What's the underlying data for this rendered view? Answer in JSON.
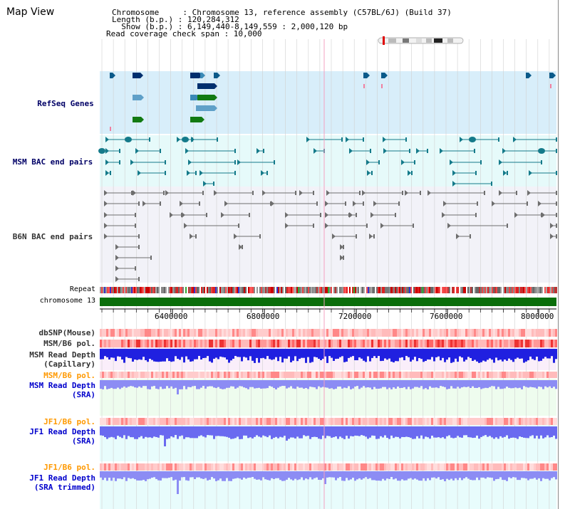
{
  "header": {
    "title": "Map View",
    "chromosome_line": "Chromosome     : Chromosome 13, reference assembly (C57BL/6J) (Build 37)",
    "length_line": "Length (b.p.) : 120,284,312",
    "show_line": "  Show (b.p.) : 6,149,440-8,149,559 : 2,000,120 bp",
    "coverage_line": "Read coverage check span : 10,000"
  },
  "tracks": {
    "refseq": "RefSeq Genes",
    "msm_bac": "MSM BAC end pairs",
    "b6n_bac": "B6N BAC end pairs",
    "repeat": "Repeat",
    "chromosome": "chromosome 13",
    "dbsnp": "dbSNP(Mouse)",
    "msm_b6_pol_1": "MSM/B6 pol.",
    "msm_depth_cap_1": "MSM Read Depth",
    "msm_depth_cap_2": "(Capillary)",
    "msm_b6_pol_2": "MSM/B6 pol.",
    "msm_depth_sra_1": "MSM Read Depth",
    "msm_depth_sra_2": "(SRA)",
    "jf1_b6_pol_1": "JF1/B6 pol.",
    "jf1_depth_sra_1": "JF1 Read Depth",
    "jf1_depth_sra_2": "(SRA)",
    "jf1_b6_pol_2": "JF1/B6 pol.",
    "jf1_depth_trim_1": "JF1 Read Depth",
    "jf1_depth_trim_2": "(SRA trimmed)"
  },
  "axis": {
    "ticks": [
      "6400000",
      "6800000",
      "7200000",
      "7600000",
      "8000000"
    ]
  },
  "colors": {
    "label_dark": "#000066",
    "label_gray": "#333333",
    "label_orange": "#ff9900",
    "label_blue": "#0000cc",
    "refseq_bg": "#d8eefa",
    "msm_bg": "#e6fafa",
    "b6n_bg": "#f2f2f8",
    "depth_cap_bg": "#faeefa",
    "msm_sra_bg": "#eefcee",
    "jf1_bg": "#e8fcfc"
  }
}
